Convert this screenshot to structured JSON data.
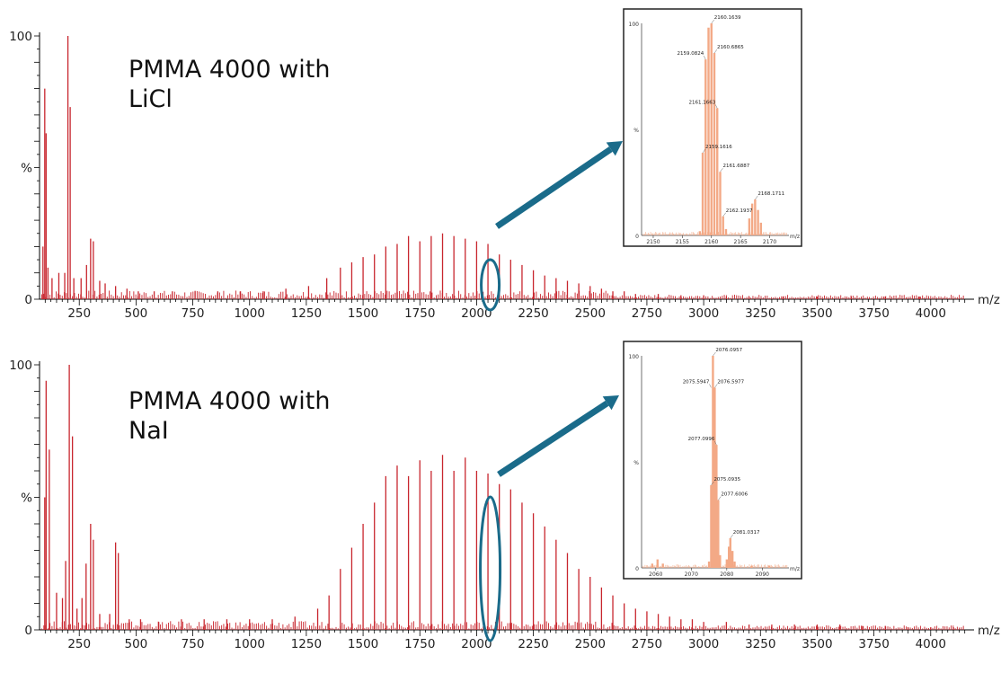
{
  "colors": {
    "spectrum": "#c8262e",
    "inset_spectrum": "#f3a986",
    "callout": "#1a6b8a",
    "axis": "#000000"
  },
  "chart_data": [
    {
      "type": "bar",
      "title": "PMMA 4000 with\nLiCl",
      "ylabel": "%",
      "xlabel": "m/z",
      "xlim": [
        75,
        4175
      ],
      "ylim": [
        0,
        100
      ],
      "xticks": [
        250,
        500,
        750,
        1000,
        1250,
        1500,
        1750,
        2000,
        2250,
        2500,
        2750,
        3000,
        3250,
        3500,
        3750,
        4000
      ],
      "ytick_labels": [
        "100",
        "%",
        "0"
      ],
      "highlight_mz": 2060,
      "peaks": [
        {
          "x": 90,
          "y": 20
        },
        {
          "x": 98,
          "y": 80
        },
        {
          "x": 104,
          "y": 63
        },
        {
          "x": 112,
          "y": 12
        },
        {
          "x": 130,
          "y": 8
        },
        {
          "x": 160,
          "y": 10
        },
        {
          "x": 186,
          "y": 10
        },
        {
          "x": 200,
          "y": 100
        },
        {
          "x": 210,
          "y": 73
        },
        {
          "x": 226,
          "y": 8
        },
        {
          "x": 258,
          "y": 8
        },
        {
          "x": 282,
          "y": 13
        },
        {
          "x": 300,
          "y": 23
        },
        {
          "x": 312,
          "y": 22
        },
        {
          "x": 340,
          "y": 7
        },
        {
          "x": 364,
          "y": 6
        },
        {
          "x": 410,
          "y": 5
        },
        {
          "x": 460,
          "y": 4
        },
        {
          "x": 510,
          "y": 3
        },
        {
          "x": 580,
          "y": 3
        },
        {
          "x": 660,
          "y": 3
        },
        {
          "x": 760,
          "y": 3
        },
        {
          "x": 860,
          "y": 3
        },
        {
          "x": 960,
          "y": 3
        },
        {
          "x": 1060,
          "y": 3
        },
        {
          "x": 1160,
          "y": 4
        },
        {
          "x": 1260,
          "y": 5
        },
        {
          "x": 1340,
          "y": 8
        },
        {
          "x": 1400,
          "y": 12
        },
        {
          "x": 1450,
          "y": 14
        },
        {
          "x": 1500,
          "y": 16
        },
        {
          "x": 1550,
          "y": 17
        },
        {
          "x": 1600,
          "y": 20
        },
        {
          "x": 1650,
          "y": 21
        },
        {
          "x": 1700,
          "y": 24
        },
        {
          "x": 1750,
          "y": 22
        },
        {
          "x": 1800,
          "y": 24
        },
        {
          "x": 1850,
          "y": 25
        },
        {
          "x": 1900,
          "y": 24
        },
        {
          "x": 1950,
          "y": 23
        },
        {
          "x": 2000,
          "y": 22
        },
        {
          "x": 2050,
          "y": 21
        },
        {
          "x": 2100,
          "y": 17
        },
        {
          "x": 2150,
          "y": 15
        },
        {
          "x": 2200,
          "y": 13
        },
        {
          "x": 2250,
          "y": 11
        },
        {
          "x": 2300,
          "y": 9
        },
        {
          "x": 2350,
          "y": 8
        },
        {
          "x": 2400,
          "y": 7
        },
        {
          "x": 2450,
          "y": 6
        },
        {
          "x": 2500,
          "y": 5
        },
        {
          "x": 2550,
          "y": 4
        },
        {
          "x": 2600,
          "y": 3
        },
        {
          "x": 2650,
          "y": 3
        },
        {
          "x": 2700,
          "y": 2
        },
        {
          "x": 2800,
          "y": 2
        },
        {
          "x": 2900,
          "y": 1.5
        },
        {
          "x": 3000,
          "y": 1.5
        },
        {
          "x": 3100,
          "y": 1
        },
        {
          "x": 3200,
          "y": 1
        },
        {
          "x": 3350,
          "y": 1
        },
        {
          "x": 3500,
          "y": 1
        },
        {
          "x": 3650,
          "y": 1
        },
        {
          "x": 3800,
          "y": 1
        },
        {
          "x": 3950,
          "y": 1
        }
      ],
      "inset": {
        "xlim": [
          2148,
          2173
        ],
        "ylim": [
          0,
          100
        ],
        "xticks": [
          2150,
          2155,
          2160,
          2165,
          2170
        ],
        "ytick_labels": [
          "100",
          "%",
          "0"
        ],
        "xlabel": "m/z",
        "peaks": [
          {
            "x": 2158.0,
            "y": 2
          },
          {
            "x": 2158.5,
            "y": 39
          },
          {
            "x": 2159.0,
            "y": 83
          },
          {
            "x": 2159.5,
            "y": 98
          },
          {
            "x": 2160.0,
            "y": 100
          },
          {
            "x": 2160.5,
            "y": 86
          },
          {
            "x": 2161.0,
            "y": 60
          },
          {
            "x": 2161.5,
            "y": 30
          },
          {
            "x": 2162.0,
            "y": 9
          },
          {
            "x": 2162.5,
            "y": 3
          },
          {
            "x": 2166.5,
            "y": 8
          },
          {
            "x": 2167.0,
            "y": 15
          },
          {
            "x": 2167.5,
            "y": 17
          },
          {
            "x": 2168.0,
            "y": 12
          },
          {
            "x": 2168.5,
            "y": 6
          }
        ],
        "annotations": [
          {
            "text": "2160.1639",
            "x": 2160.0,
            "y": 100
          },
          {
            "text": "2159.0824",
            "x": 2159.0,
            "y": 83
          },
          {
            "text": "2160.6865",
            "x": 2160.5,
            "y": 86
          },
          {
            "text": "2161.1663",
            "x": 2161.0,
            "y": 60
          },
          {
            "text": "2159.1616",
            "x": 2158.5,
            "y": 39
          },
          {
            "text": "2161.6887",
            "x": 2161.5,
            "y": 30
          },
          {
            "text": "2162.1937",
            "x": 2162.0,
            "y": 9
          },
          {
            "text": "2168.1711",
            "x": 2167.5,
            "y": 17
          }
        ]
      }
    },
    {
      "type": "bar",
      "title": "PMMA 4000 with\nNaI",
      "ylabel": "%",
      "xlabel": "m/z",
      "xlim": [
        75,
        4175
      ],
      "ylim": [
        0,
        100
      ],
      "xticks": [
        250,
        500,
        750,
        1000,
        1250,
        1500,
        1750,
        2000,
        2250,
        2500,
        2750,
        3000,
        3250,
        3500,
        3750,
        4000
      ],
      "ytick_labels": [
        "100",
        "%",
        "0"
      ],
      "highlight_mz": 2060,
      "peaks": [
        {
          "x": 98,
          "y": 50
        },
        {
          "x": 104,
          "y": 94
        },
        {
          "x": 118,
          "y": 68
        },
        {
          "x": 150,
          "y": 14
        },
        {
          "x": 176,
          "y": 12
        },
        {
          "x": 190,
          "y": 26
        },
        {
          "x": 206,
          "y": 100
        },
        {
          "x": 220,
          "y": 73
        },
        {
          "x": 240,
          "y": 8
        },
        {
          "x": 262,
          "y": 12
        },
        {
          "x": 280,
          "y": 25
        },
        {
          "x": 300,
          "y": 40
        },
        {
          "x": 312,
          "y": 34
        },
        {
          "x": 340,
          "y": 6
        },
        {
          "x": 384,
          "y": 6
        },
        {
          "x": 410,
          "y": 33
        },
        {
          "x": 422,
          "y": 29
        },
        {
          "x": 470,
          "y": 4
        },
        {
          "x": 520,
          "y": 4
        },
        {
          "x": 600,
          "y": 3
        },
        {
          "x": 700,
          "y": 4
        },
        {
          "x": 800,
          "y": 4
        },
        {
          "x": 900,
          "y": 4
        },
        {
          "x": 1000,
          "y": 4
        },
        {
          "x": 1100,
          "y": 4
        },
        {
          "x": 1200,
          "y": 5
        },
        {
          "x": 1300,
          "y": 8
        },
        {
          "x": 1350,
          "y": 13
        },
        {
          "x": 1400,
          "y": 23
        },
        {
          "x": 1450,
          "y": 31
        },
        {
          "x": 1500,
          "y": 40
        },
        {
          "x": 1550,
          "y": 48
        },
        {
          "x": 1600,
          "y": 58
        },
        {
          "x": 1650,
          "y": 62
        },
        {
          "x": 1700,
          "y": 58
        },
        {
          "x": 1750,
          "y": 64
        },
        {
          "x": 1800,
          "y": 60
        },
        {
          "x": 1850,
          "y": 66
        },
        {
          "x": 1900,
          "y": 60
        },
        {
          "x": 1950,
          "y": 65
        },
        {
          "x": 2000,
          "y": 60
        },
        {
          "x": 2050,
          "y": 59
        },
        {
          "x": 2100,
          "y": 55
        },
        {
          "x": 2150,
          "y": 53
        },
        {
          "x": 2200,
          "y": 48
        },
        {
          "x": 2250,
          "y": 44
        },
        {
          "x": 2300,
          "y": 39
        },
        {
          "x": 2350,
          "y": 34
        },
        {
          "x": 2400,
          "y": 29
        },
        {
          "x": 2450,
          "y": 23
        },
        {
          "x": 2500,
          "y": 20
        },
        {
          "x": 2550,
          "y": 16
        },
        {
          "x": 2600,
          "y": 13
        },
        {
          "x": 2650,
          "y": 10
        },
        {
          "x": 2700,
          "y": 8
        },
        {
          "x": 2750,
          "y": 7
        },
        {
          "x": 2800,
          "y": 6
        },
        {
          "x": 2850,
          "y": 5
        },
        {
          "x": 2900,
          "y": 4
        },
        {
          "x": 2950,
          "y": 4
        },
        {
          "x": 3000,
          "y": 3
        },
        {
          "x": 3100,
          "y": 3
        },
        {
          "x": 3200,
          "y": 2
        },
        {
          "x": 3300,
          "y": 2
        },
        {
          "x": 3400,
          "y": 2
        },
        {
          "x": 3500,
          "y": 2
        },
        {
          "x": 3600,
          "y": 2
        },
        {
          "x": 3700,
          "y": 1.5
        },
        {
          "x": 3800,
          "y": 1.5
        },
        {
          "x": 3900,
          "y": 1
        },
        {
          "x": 4000,
          "y": 1
        },
        {
          "x": 4100,
          "y": 1
        }
      ],
      "inset": {
        "xlim": [
          2056,
          2097
        ],
        "ylim": [
          0,
          100
        ],
        "xticks": [
          2060,
          2070,
          2080,
          2090
        ],
        "ytick_labels": [
          "100",
          "%",
          "0"
        ],
        "xlabel": "m/z",
        "peaks": [
          {
            "x": 2059.0,
            "y": 2
          },
          {
            "x": 2060.5,
            "y": 4
          },
          {
            "x": 2062.0,
            "y": 2
          },
          {
            "x": 2075.0,
            "y": 3
          },
          {
            "x": 2075.6,
            "y": 39
          },
          {
            "x": 2076.1,
            "y": 100
          },
          {
            "x": 2076.6,
            "y": 85
          },
          {
            "x": 2077.1,
            "y": 58
          },
          {
            "x": 2077.6,
            "y": 32
          },
          {
            "x": 2078.1,
            "y": 6
          },
          {
            "x": 2080.0,
            "y": 4
          },
          {
            "x": 2080.6,
            "y": 10
          },
          {
            "x": 2081.0,
            "y": 14
          },
          {
            "x": 2081.6,
            "y": 8
          },
          {
            "x": 2082.2,
            "y": 3
          },
          {
            "x": 2087.0,
            "y": 1
          },
          {
            "x": 2092.0,
            "y": 1
          }
        ],
        "annotations": [
          {
            "text": "2076.0957",
            "x": 2076.1,
            "y": 100
          },
          {
            "text": "2075.5947",
            "x": 2075.6,
            "y": 85
          },
          {
            "text": "2076.5977",
            "x": 2076.6,
            "y": 85
          },
          {
            "text": "2077.0996",
            "x": 2077.1,
            "y": 58
          },
          {
            "text": "2075.0935",
            "x": 2075.6,
            "y": 39
          },
          {
            "text": "2077.6006",
            "x": 2077.6,
            "y": 32
          },
          {
            "text": "2081.0317",
            "x": 2081.0,
            "y": 14
          }
        ]
      }
    }
  ]
}
